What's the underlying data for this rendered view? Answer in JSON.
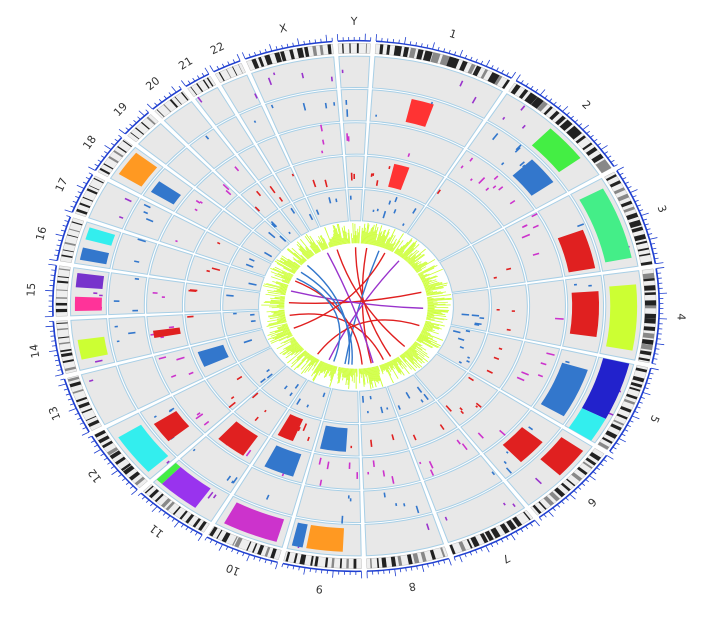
{
  "chromosomes": [
    {
      "label": "1",
      "size": 249
    },
    {
      "label": "2",
      "size": 243
    },
    {
      "label": "3",
      "size": 198
    },
    {
      "label": "4",
      "size": 190
    },
    {
      "label": "5",
      "size": 181
    },
    {
      "label": "6",
      "size": 171
    },
    {
      "label": "7",
      "size": 159
    },
    {
      "label": "8",
      "size": 145
    },
    {
      "label": "9",
      "size": 138
    },
    {
      "label": "10",
      "size": 133
    },
    {
      "label": "11",
      "size": 135
    },
    {
      "label": "12",
      "size": 133
    },
    {
      "label": "13",
      "size": 114
    },
    {
      "label": "14",
      "size": 107
    },
    {
      "label": "15",
      "size": 102
    },
    {
      "label": "16",
      "size": 90
    },
    {
      "label": "17",
      "size": 83
    },
    {
      "label": "18",
      "size": 80
    },
    {
      "label": "19",
      "size": 59
    },
    {
      "label": "20",
      "size": 64
    },
    {
      "label": "21",
      "size": 47
    },
    {
      "label": "22",
      "size": 51
    },
    {
      "label": "X",
      "size": 156
    },
    {
      "label": "Y",
      "size": 57
    }
  ],
  "colors": {
    "ideogram_band": "#222222",
    "ideogram_bg": "#eeeeee",
    "tick": "#1f3fd0",
    "track_bg": "#e8e8e8",
    "track_border": "#a8cfe6",
    "histogram": "#ccff33",
    "purple": "#9933cc",
    "magenta": "#cc33cc",
    "blue": "#3377cc",
    "red": "#e02020",
    "green": "#44ee44",
    "orange": "#ff9922",
    "cyan": "#33eeee",
    "yellow_green": "#ccff33",
    "pink": "#ff3399",
    "dark_blue": "#2222cc"
  },
  "highlights": [
    {
      "chrom": "1",
      "track": 1,
      "start": 0.35,
      "end": 0.55,
      "color": "#ff3333"
    },
    {
      "chrom": "1",
      "track": 3,
      "start": 0.35,
      "end": 0.55,
      "color": "#ff3333"
    },
    {
      "chrom": "2",
      "track": 0,
      "start": 0.45,
      "end": 0.8,
      "color": "#44ee44"
    },
    {
      "chrom": "2",
      "track": 1,
      "start": 0.55,
      "end": 0.85,
      "color": "#3377cc"
    },
    {
      "chrom": "3",
      "track": 0,
      "start": 0.1,
      "end": 0.9,
      "color": "#44ee88"
    },
    {
      "chrom": "3",
      "track": 1,
      "start": 0.45,
      "end": 0.95,
      "color": "#e02020"
    },
    {
      "chrom": "4",
      "track": 0,
      "start": 0.15,
      "end": 0.9,
      "color": "#ccff33"
    },
    {
      "chrom": "4",
      "track": 1,
      "start": 0.2,
      "end": 0.8,
      "color": "#e02020"
    },
    {
      "chrom": "5",
      "track": 0,
      "start": 0.0,
      "end": 0.7,
      "color": "#2222cc"
    },
    {
      "chrom": "5",
      "track": 0,
      "start": 0.7,
      "end": 1.0,
      "color": "#33eeee"
    },
    {
      "chrom": "5",
      "track": 1,
      "start": 0.2,
      "end": 0.9,
      "color": "#3377cc"
    },
    {
      "chrom": "6",
      "track": 0,
      "start": 0.1,
      "end": 0.5,
      "color": "#e02020"
    },
    {
      "chrom": "6",
      "track": 1,
      "start": 0.3,
      "end": 0.7,
      "color": "#e02020"
    },
    {
      "chrom": "9",
      "track": 0,
      "start": 0.25,
      "end": 0.75,
      "color": "#ff9922"
    },
    {
      "chrom": "9",
      "track": 0,
      "start": 0.8,
      "end": 0.95,
      "color": "#3377cc"
    },
    {
      "chrom": "9",
      "track": 3,
      "start": 0.3,
      "end": 0.9,
      "color": "#3377cc"
    },
    {
      "chrom": "10",
      "track": 0,
      "start": 0.1,
      "end": 0.9,
      "color": "#cc33cc"
    },
    {
      "chrom": "10",
      "track": 2,
      "start": 0.2,
      "end": 0.8,
      "color": "#3377cc"
    },
    {
      "chrom": "10",
      "track": 3,
      "start": 0.5,
      "end": 0.9,
      "color": "#e02020"
    },
    {
      "chrom": "11",
      "track": 0,
      "start": 0.3,
      "end": 0.9,
      "color": "#9933ee"
    },
    {
      "chrom": "11",
      "track": 0,
      "start": 0.9,
      "end": 1.0,
      "color": "#44ee44"
    },
    {
      "chrom": "11",
      "track": 2,
      "start": 0.2,
      "end": 0.8,
      "color": "#e02020"
    },
    {
      "chrom": "12",
      "track": 0,
      "start": 0.1,
      "end": 0.8,
      "color": "#33eeee"
    },
    {
      "chrom": "12",
      "track": 1,
      "start": 0.3,
      "end": 0.7,
      "color": "#e02020"
    },
    {
      "chrom": "13",
      "track": 3,
      "start": 0.3,
      "end": 0.8,
      "color": "#3377cc"
    },
    {
      "chrom": "14",
      "track": 0,
      "start": 0.2,
      "end": 0.6,
      "color": "#ccff33"
    },
    {
      "chrom": "14",
      "track": 2,
      "start": 0.4,
      "end": 0.6,
      "color": "#e02020"
    },
    {
      "chrom": "15",
      "track": 0,
      "start": 0.1,
      "end": 0.4,
      "color": "#ff3399"
    },
    {
      "chrom": "15",
      "track": 0,
      "start": 0.6,
      "end": 0.9,
      "color": "#7733cc"
    },
    {
      "chrom": "16",
      "track": 0,
      "start": 0.1,
      "end": 0.4,
      "color": "#3377cc"
    },
    {
      "chrom": "16",
      "track": 0,
      "start": 0.6,
      "end": 0.9,
      "color": "#33eeee"
    },
    {
      "chrom": "18",
      "track": 0,
      "start": 0.2,
      "end": 0.9,
      "color": "#ff9922"
    },
    {
      "chrom": "18",
      "track": 1,
      "start": 0.2,
      "end": 0.6,
      "color": "#3377cc"
    }
  ],
  "links": [
    {
      "from": "Y",
      "from_pos": 0.5,
      "to": "7",
      "to_pos": 0.3,
      "color": "#e02020"
    },
    {
      "from": "1",
      "from_pos": 0.2,
      "to": "8",
      "to_pos": 0.3,
      "color": "#e02020"
    },
    {
      "from": "1",
      "from_pos": 0.6,
      "to": "9",
      "to_pos": 0.7,
      "color": "#3377cc"
    },
    {
      "from": "2",
      "from_pos": 0.3,
      "to": "10",
      "to_pos": 0.6,
      "color": "#9933cc"
    },
    {
      "from": "3",
      "from_pos": 0.8,
      "to": "15",
      "to_pos": 0.5,
      "color": "#e02020"
    },
    {
      "from": "4",
      "from_pos": 0.5,
      "to": "16",
      "to_pos": 0.5,
      "color": "#9933cc"
    },
    {
      "from": "5",
      "from_pos": 0.3,
      "to": "11",
      "to_pos": 0.3,
      "color": "#e02020"
    },
    {
      "from": "7",
      "from_pos": 0.7,
      "to": "14",
      "to_pos": 0.5,
      "color": "#e02020"
    },
    {
      "from": "17",
      "from_pos": 0.5,
      "to": "8",
      "to_pos": 0.8,
      "color": "#e02020"
    },
    {
      "from": "18",
      "from_pos": 0.5,
      "to": "9",
      "to_pos": 0.3,
      "color": "#3377cc"
    },
    {
      "from": "X",
      "from_pos": 0.3,
      "to": "6",
      "to_pos": 0.5,
      "color": "#e02020"
    },
    {
      "from": "17",
      "from_pos": 0.8,
      "to": "10",
      "to_pos": 0.3,
      "color": "#3377cc"
    },
    {
      "from": "22",
      "from_pos": 0.5,
      "to": "8",
      "to_pos": 0.2,
      "color": "#9933cc"
    },
    {
      "from": "13",
      "from_pos": 0.5,
      "to": "1",
      "to_pos": 0.8,
      "color": "#e02020"
    },
    {
      "from": "19",
      "from_pos": 0.5,
      "to": "9",
      "to_pos": 0.5,
      "color": "#3377cc"
    }
  ]
}
